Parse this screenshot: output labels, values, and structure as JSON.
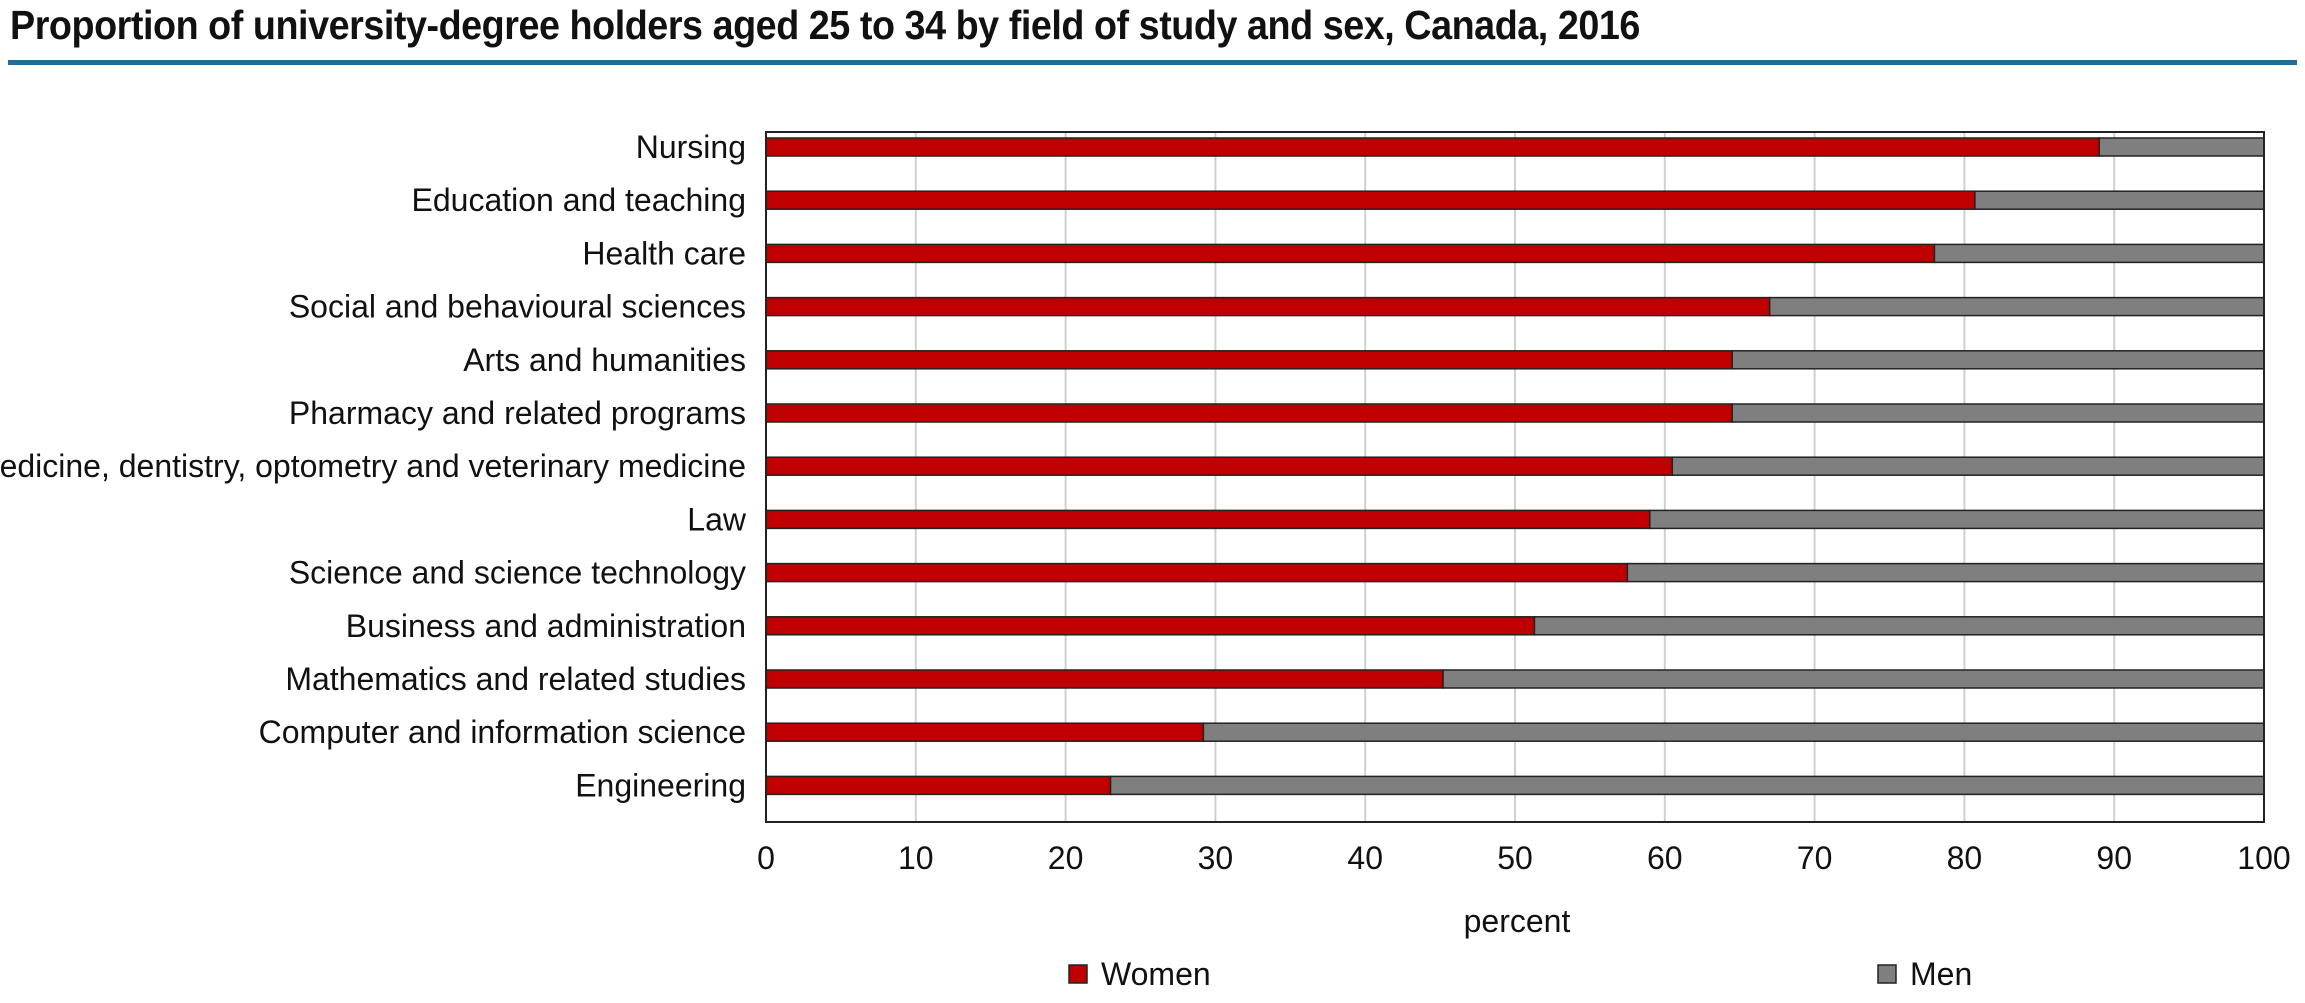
{
  "title": "Proportion of university-degree holders aged 25 to 34 by field of study and sex, Canada, 2016",
  "colors": {
    "women": "#c00000",
    "men": "#7f7f7f",
    "rule": "#1f6e9a",
    "grid": "#d0d0d0"
  },
  "chart_data": {
    "type": "bar",
    "orientation": "horizontal",
    "stacked": true,
    "title": "Proportion of university-degree holders aged 25 to 34 by field of study and sex, Canada, 2016",
    "xlabel": "percent",
    "ylabel": "",
    "xlim": [
      0,
      100
    ],
    "xticks": [
      0,
      10,
      20,
      30,
      40,
      50,
      60,
      70,
      80,
      90,
      100
    ],
    "grid": "vertical",
    "legend": "bottom",
    "categories": [
      "Nursing",
      "Education and teaching",
      "Health care",
      "Social and behavioural sciences",
      "Arts and humanities",
      "Pharmacy and related programs",
      "Medicine, dentistry, optometry and veterinary medicine",
      "Law",
      "Science and science technology",
      "Business and administration",
      "Mathematics and related studies",
      "Computer and information science",
      "Engineering"
    ],
    "series": [
      {
        "name": "Women",
        "values": [
          89,
          80.7,
          78,
          67,
          64.5,
          64.5,
          60.5,
          59,
          57.5,
          51.3,
          45.2,
          29.2,
          23
        ]
      },
      {
        "name": "Men",
        "values": [
          11,
          19.3,
          22,
          33,
          35.5,
          35.5,
          39.5,
          41,
          42.5,
          48.7,
          54.8,
          70.8,
          77
        ]
      }
    ]
  }
}
